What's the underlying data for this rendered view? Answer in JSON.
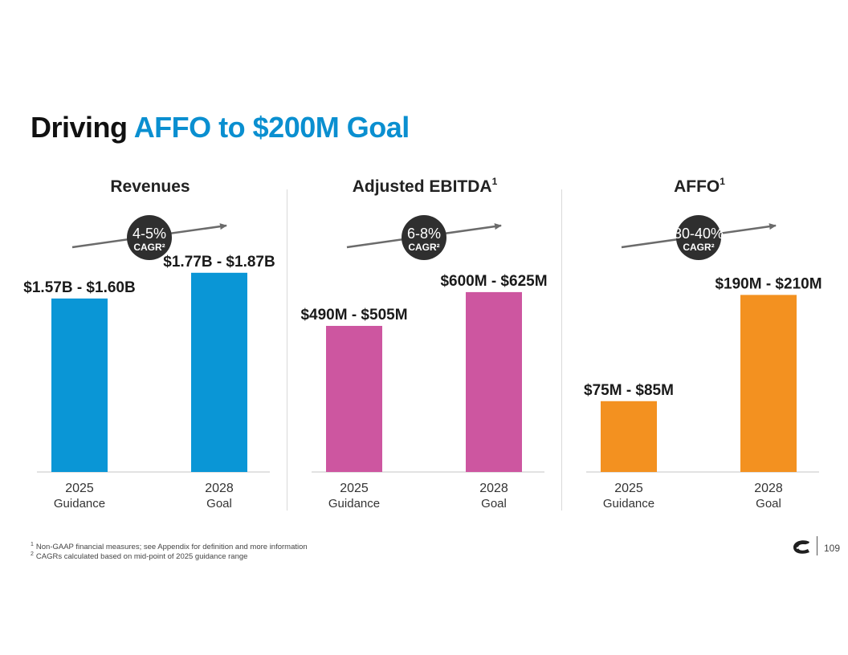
{
  "title": {
    "prefix": "Driving",
    "accent": "AFFO to $200M Goal"
  },
  "chart_data": [
    {
      "type": "bar",
      "title": "Revenues",
      "title_sup": "",
      "growth_rate": "4-5%",
      "growth_label": "CAGR²",
      "categories": [
        "2025",
        "2028"
      ],
      "category_sublabels": [
        "Guidance",
        "Goal"
      ],
      "values": [
        1.585,
        1.82
      ],
      "data_labels": [
        "$1.57B - $1.60B",
        "$1.77B - $1.87B"
      ],
      "units": "$B",
      "ylim": [
        0,
        2.2
      ],
      "color": "#0a96d6"
    },
    {
      "type": "bar",
      "title": "Adjusted EBITDA",
      "title_sup": "1",
      "growth_rate": "6-8%",
      "growth_label": "CAGR²",
      "categories": [
        "2025",
        "2028"
      ],
      "category_sublabels": [
        "Guidance",
        "Goal"
      ],
      "values": [
        497.5,
        612.5
      ],
      "data_labels": [
        "$490M - $505M",
        "$600M - $625M"
      ],
      "units": "$M",
      "ylim": [
        0,
        820
      ],
      "color": "#cd56a0"
    },
    {
      "type": "bar",
      "title": "AFFO",
      "title_sup": "1",
      "growth_rate": "30-40%",
      "growth_label": "CAGR²",
      "categories": [
        "2025",
        "2028"
      ],
      "category_sublabels": [
        "Guidance",
        "Goal"
      ],
      "values": [
        80,
        200
      ],
      "data_labels": [
        "$75M - $85M",
        "$190M - $210M"
      ],
      "units": "$M",
      "ylim": [
        0,
        272
      ],
      "color": "#f39120"
    }
  ],
  "footnotes": [
    {
      "num": "1",
      "text": "Non-GAAP financial measures; see Appendix for definition and more information"
    },
    {
      "num": "2",
      "text": "CAGRs calculated based on mid-point of 2025 guidance range"
    }
  ],
  "page_number": "109",
  "colors": {
    "accent": "#0a8fd0",
    "axis": "#d9d9d9",
    "arrow": "#6b6b6b",
    "badge": "#2f2f2f"
  }
}
